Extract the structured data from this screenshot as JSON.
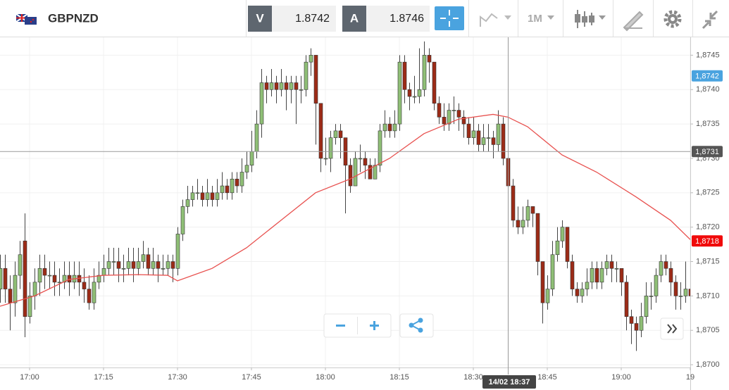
{
  "toolbar": {
    "symbol": "GBPNZD",
    "bid_label": "V",
    "bid": "1.8742",
    "ask_label": "A",
    "ask": "1.8746",
    "timeframe": "1M"
  },
  "chart_data": {
    "type": "candlestick",
    "categories": [
      null,
      null,
      null,
      null,
      null,
      null,
      "17:00",
      null,
      null,
      null,
      null,
      null,
      null,
      null,
      null,
      null,
      null,
      null,
      null,
      null,
      null,
      "17:15",
      null,
      null,
      null,
      null,
      null,
      null,
      null,
      null,
      null,
      null,
      null,
      null,
      null,
      null,
      "17:30",
      null,
      null,
      null,
      null,
      null,
      null,
      null,
      null,
      null,
      null,
      null,
      null,
      null,
      null,
      "17:45",
      null,
      null,
      null,
      null,
      null,
      null,
      null,
      null,
      null,
      null,
      null,
      null,
      null,
      null,
      "18:00",
      null,
      null,
      null,
      null,
      null,
      null,
      null,
      null,
      null,
      null,
      null,
      null,
      null,
      null,
      "18:15",
      null,
      null,
      null,
      null,
      null,
      null,
      null,
      null,
      null,
      null,
      null,
      null,
      null,
      null,
      "18:30",
      null,
      null,
      null,
      null,
      null,
      null,
      null,
      null,
      null,
      null,
      null,
      null,
      null,
      null,
      "18:45",
      null,
      null,
      null,
      null,
      null,
      null,
      null,
      null,
      null,
      null,
      null,
      null,
      null,
      null,
      "19:00",
      null,
      null,
      null,
      null,
      null,
      null,
      null,
      null,
      null,
      null,
      null,
      null,
      null,
      "19"
    ],
    "open": [
      1.8711,
      1.8714,
      1.8711,
      1.8709,
      1.8713,
      1.8718,
      1.8707,
      1.871,
      1.8712,
      1.8714,
      1.8713,
      1.8713,
      1.8712,
      1.8712,
      1.8713,
      1.8712,
      1.8713,
      1.8712,
      1.8711,
      1.8709,
      1.8712,
      1.8713,
      1.8714,
      1.8715,
      1.8715,
      1.8714,
      1.8714,
      1.8715,
      1.8714,
      1.8715,
      1.8716,
      1.8714,
      1.8715,
      1.8714,
      1.8714,
      1.8715,
      1.8714,
      1.8719,
      1.8723,
      1.8724,
      1.8725,
      1.8725,
      1.8724,
      1.8725,
      1.8724,
      1.8725,
      1.8726,
      1.8725,
      1.8727,
      1.8726,
      1.8728,
      1.8729,
      1.8731,
      1.8735,
      1.8741,
      1.874,
      1.8741,
      1.874,
      1.8741,
      1.874,
      1.8741,
      1.874,
      1.874,
      1.8744,
      1.8745,
      1.8738,
      1.873,
      1.873,
      1.8733,
      1.8734,
      1.8733,
      1.8729,
      1.8726,
      1.873,
      1.873,
      1.8729,
      1.8727,
      1.8729,
      1.8734,
      1.8735,
      1.8734,
      1.8735,
      1.8744,
      1.874,
      1.8739,
      1.8739,
      1.874,
      1.8745,
      1.8744,
      1.8738,
      1.8736,
      1.8735,
      1.8737,
      1.8737,
      1.8736,
      1.8735,
      1.8733,
      1.8734,
      1.8732,
      1.8733,
      1.8733,
      1.8732,
      1.8735,
      1.873,
      1.8726,
      1.8721,
      1.872,
      1.8721,
      1.8723,
      1.8722,
      1.8715,
      1.8709,
      1.8711,
      1.8716,
      1.8718,
      1.872,
      1.8715,
      1.8711,
      1.871,
      1.8711,
      1.8712,
      1.8714,
      1.8712,
      1.8714,
      1.8715,
      1.8714,
      1.8714,
      1.8712,
      1.8707,
      1.8706,
      1.8705,
      1.8707,
      1.871,
      1.871,
      1.8713,
      1.8715,
      1.8714,
      1.8712,
      1.871,
      1.871,
      1.8711
    ],
    "high": [
      1.8716,
      1.8716,
      1.8713,
      1.8715,
      1.8718,
      1.8722,
      1.8712,
      1.8714,
      1.8716,
      1.8716,
      1.8715,
      1.8715,
      1.8714,
      1.8715,
      1.8715,
      1.8715,
      1.8715,
      1.8714,
      1.8713,
      1.8714,
      1.8715,
      1.8716,
      1.8717,
      1.8717,
      1.8717,
      1.8716,
      1.8717,
      1.8717,
      1.8717,
      1.8718,
      1.8717,
      1.8717,
      1.8716,
      1.8716,
      1.8716,
      1.8716,
      1.872,
      1.8724,
      1.8726,
      1.8726,
      1.8727,
      1.8726,
      1.8727,
      1.8726,
      1.8727,
      1.8728,
      1.8727,
      1.8728,
      1.8728,
      1.873,
      1.8731,
      1.8734,
      1.8737,
      1.8743,
      1.8742,
      1.8743,
      1.8742,
      1.8743,
      1.8742,
      1.8742,
      1.8742,
      1.8742,
      1.8745,
      1.8746,
      1.8745,
      1.8738,
      1.8733,
      1.8734,
      1.8735,
      1.8735,
      1.8733,
      1.873,
      1.8731,
      1.8732,
      1.8731,
      1.873,
      1.873,
      1.8735,
      1.8737,
      1.8736,
      1.8737,
      1.8745,
      1.8745,
      1.8741,
      1.8742,
      1.8746,
      1.8747,
      1.8746,
      1.8744,
      1.8739,
      1.8738,
      1.8738,
      1.8739,
      1.8738,
      1.8737,
      1.8736,
      1.8736,
      1.8735,
      1.8735,
      1.8735,
      1.8734,
      1.8737,
      1.8736,
      1.8731,
      1.8727,
      1.8723,
      1.8723,
      1.8724,
      1.8723,
      1.8722,
      1.8715,
      1.8713,
      1.8718,
      1.872,
      1.8721,
      1.872,
      1.8716,
      1.8712,
      1.8712,
      1.8714,
      1.8715,
      1.8715,
      1.8715,
      1.8716,
      1.8716,
      1.8715,
      1.8714,
      1.8713,
      1.8708,
      1.8707,
      1.8709,
      1.8712,
      1.8712,
      1.8714,
      1.8716,
      1.8716,
      1.8715,
      1.8713,
      1.8712,
      1.8715,
      1.8712
    ],
    "low": [
      1.8709,
      1.8709,
      1.8705,
      1.8707,
      1.8711,
      1.8704,
      1.8706,
      1.8708,
      1.871,
      1.8711,
      1.8711,
      1.871,
      1.871,
      1.8711,
      1.871,
      1.8711,
      1.871,
      1.8709,
      1.8708,
      1.8708,
      1.8711,
      1.8712,
      1.8713,
      1.8713,
      1.8712,
      1.8712,
      1.8713,
      1.8712,
      1.8713,
      1.8714,
      1.8713,
      1.8713,
      1.8712,
      1.8713,
      1.8713,
      1.8712,
      1.8713,
      1.8718,
      1.8722,
      1.8723,
      1.8724,
      1.8723,
      1.8723,
      1.8723,
      1.8723,
      1.8724,
      1.8724,
      1.8724,
      1.8725,
      1.8725,
      1.8727,
      1.8728,
      1.873,
      1.8733,
      1.8738,
      1.8739,
      1.8738,
      1.8739,
      1.8737,
      1.8738,
      1.8735,
      1.8738,
      1.8739,
      1.8742,
      1.8732,
      1.8728,
      1.8729,
      1.8728,
      1.8732,
      1.873,
      1.8722,
      1.8725,
      1.8726,
      1.8728,
      1.8727,
      1.8727,
      1.8727,
      1.8728,
      1.8733,
      1.8733,
      1.8733,
      1.8734,
      1.8738,
      1.8737,
      1.8738,
      1.8738,
      1.8739,
      1.8741,
      1.8737,
      1.8735,
      1.8734,
      1.8734,
      1.8735,
      1.8734,
      1.8733,
      1.8732,
      1.8732,
      1.8731,
      1.8731,
      1.8731,
      1.873,
      1.8731,
      1.8729,
      1.8724,
      1.872,
      1.8719,
      1.8719,
      1.872,
      1.872,
      1.8713,
      1.8706,
      1.8708,
      1.871,
      1.8715,
      1.8717,
      1.8714,
      1.871,
      1.8709,
      1.8709,
      1.871,
      1.8711,
      1.8711,
      1.8711,
      1.8713,
      1.8712,
      1.8712,
      1.871,
      1.8705,
      1.8703,
      1.8702,
      1.8704,
      1.8706,
      1.8708,
      1.8709,
      1.8712,
      1.8713,
      1.871,
      1.8708,
      1.8708,
      1.8709,
      1.8707
    ],
    "close": [
      1.8714,
      1.8711,
      1.8709,
      1.8713,
      1.8716,
      1.8707,
      1.871,
      1.8712,
      1.8714,
      1.8713,
      1.8713,
      1.8712,
      1.8712,
      1.8713,
      1.8712,
      1.8713,
      1.8712,
      1.8711,
      1.8709,
      1.8712,
      1.8713,
      1.8714,
      1.8715,
      1.8715,
      1.8714,
      1.8714,
      1.8715,
      1.8714,
      1.8715,
      1.8716,
      1.8714,
      1.8715,
      1.8714,
      1.8714,
      1.8715,
      1.8714,
      1.8719,
      1.8723,
      1.8724,
      1.8725,
      1.8725,
      1.8724,
      1.8725,
      1.8724,
      1.8725,
      1.8726,
      1.8725,
      1.8727,
      1.8726,
      1.8728,
      1.8729,
      1.8731,
      1.8735,
      1.8741,
      1.874,
      1.8741,
      1.874,
      1.8741,
      1.874,
      1.8741,
      1.874,
      1.874,
      1.8744,
      1.8745,
      1.8738,
      1.873,
      1.873,
      1.8733,
      1.8734,
      1.8733,
      1.8729,
      1.8726,
      1.873,
      1.873,
      1.8729,
      1.8727,
      1.8729,
      1.8734,
      1.8735,
      1.8734,
      1.8735,
      1.8744,
      1.874,
      1.8739,
      1.8739,
      1.874,
      1.8745,
      1.8744,
      1.8738,
      1.8736,
      1.8735,
      1.8737,
      1.8737,
      1.8736,
      1.8735,
      1.8733,
      1.8734,
      1.8732,
      1.8733,
      1.8733,
      1.8732,
      1.8735,
      1.873,
      1.8726,
      1.8721,
      1.872,
      1.8721,
      1.8723,
      1.8722,
      1.8715,
      1.8709,
      1.8711,
      1.8716,
      1.8718,
      1.872,
      1.8715,
      1.8711,
      1.871,
      1.8711,
      1.8712,
      1.8714,
      1.8712,
      1.8714,
      1.8715,
      1.8714,
      1.8714,
      1.8712,
      1.8707,
      1.8706,
      1.8705,
      1.8707,
      1.871,
      1.871,
      1.8713,
      1.8715,
      1.8714,
      1.8712,
      1.871,
      1.871,
      1.8711,
      1.871
    ],
    "up_color": "#8fbf76",
    "down_color": "#9c2b17",
    "ylim": [
      1.86996,
      1.87476
    ],
    "yticks": [
      {
        "value": 1.87,
        "label": "1,8700"
      },
      {
        "value": 1.8705,
        "label": "1,8705"
      },
      {
        "value": 1.871,
        "label": "1,8710"
      },
      {
        "value": 1.8715,
        "label": "1,8715"
      },
      {
        "value": 1.872,
        "label": "1,8720"
      },
      {
        "value": 1.8725,
        "label": "1,8725"
      },
      {
        "value": 1.873,
        "label": "1,8730"
      },
      {
        "value": 1.8735,
        "label": "1,8735"
      },
      {
        "value": 1.874,
        "label": "1,8740"
      },
      {
        "value": 1.8745,
        "label": "1,8745"
      }
    ],
    "grid": true,
    "ma": {
      "color": "#e8514f",
      "x": [
        0,
        7,
        14,
        21,
        28,
        34,
        36,
        43,
        50,
        57,
        64,
        71,
        79,
        86,
        93,
        100,
        103,
        107,
        114,
        121,
        129,
        136,
        140
      ],
      "values": [
        1.87085,
        1.871,
        1.87124,
        1.8713,
        1.87131,
        1.8713,
        1.87122,
        1.8714,
        1.8717,
        1.8721,
        1.8725,
        1.8727,
        1.873,
        1.87336,
        1.87357,
        1.87364,
        1.8736,
        1.87346,
        1.87305,
        1.8728,
        1.87244,
        1.8721,
        1.87182
      ]
    },
    "price_labels": [
      {
        "value": 1.8742,
        "label": "1,8742",
        "color": "#4aa3df"
      },
      {
        "value": 1.8718,
        "label": "1,8718",
        "color": "#f00a0a"
      }
    ],
    "crosshair": {
      "index": 103,
      "label": "14/02 18:37",
      "price": {
        "value": 1.8731,
        "label": "1,8731"
      }
    }
  }
}
